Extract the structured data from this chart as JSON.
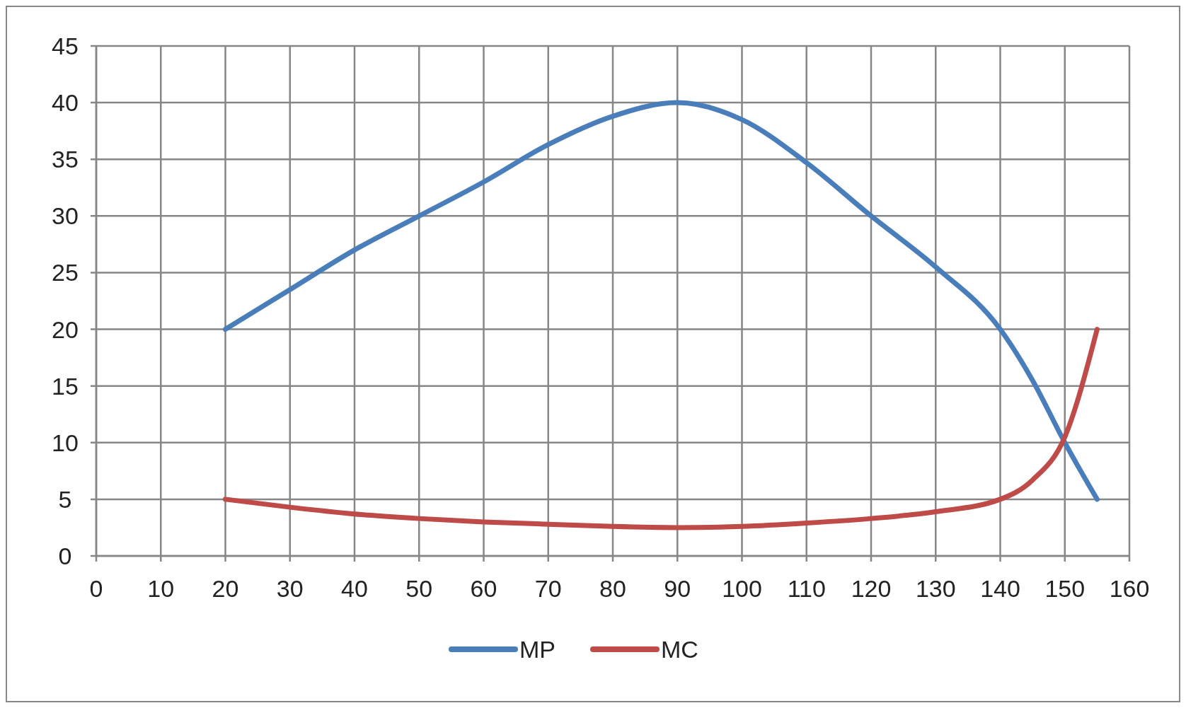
{
  "chart_data": {
    "type": "line",
    "x": [
      20,
      30,
      40,
      50,
      60,
      70,
      80,
      90,
      100,
      110,
      120,
      130,
      140,
      145,
      150,
      155
    ],
    "series": [
      {
        "name": "MP",
        "color": "#4a7ebb",
        "values": [
          20,
          23.5,
          27,
          30,
          33,
          36.3,
          38.8,
          40,
          38.5,
          34.7,
          30,
          25.5,
          20,
          15.5,
          10,
          5
        ]
      },
      {
        "name": "MC",
        "color": "#be4b48",
        "values": [
          5,
          4.3,
          3.7,
          3.3,
          3,
          2.8,
          2.6,
          2.5,
          2.6,
          2.9,
          3.3,
          3.9,
          5,
          6.7,
          10.5,
          20
        ]
      }
    ],
    "xlim": [
      0,
      160
    ],
    "xticks": [
      0,
      10,
      20,
      30,
      40,
      50,
      60,
      70,
      80,
      90,
      100,
      110,
      120,
      130,
      140,
      150,
      160
    ],
    "ylim": [
      0,
      45
    ],
    "yticks": [
      0,
      5,
      10,
      15,
      20,
      25,
      30,
      35,
      40,
      45
    ],
    "grid": true,
    "legend": "bottom"
  }
}
